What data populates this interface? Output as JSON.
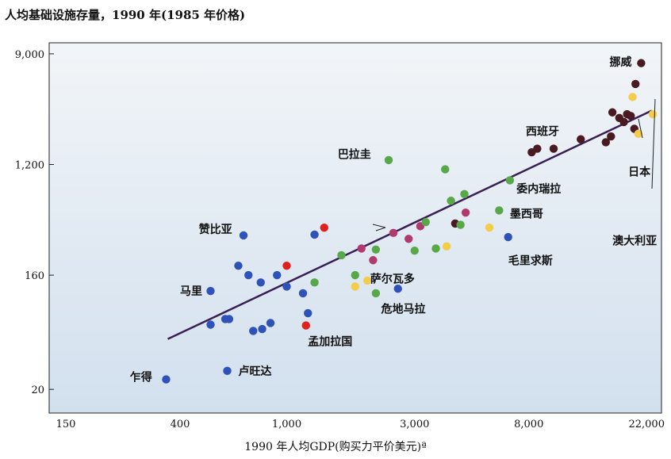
{
  "chart_data": {
    "type": "scatter",
    "title": "人均基础设施存量，1990 年(1985 年价格)",
    "xlabel": "1990 年人均GDP(购买力平价美元)ª",
    "ylabel": "",
    "xscale": "log",
    "yscale": "log",
    "xlim": [
      130,
      25000
    ],
    "ylim": [
      13,
      11000
    ],
    "x_ticks": [
      {
        "value": 150,
        "label": "150"
      },
      {
        "value": 400,
        "label": "400"
      },
      {
        "value": 1000,
        "label": "1,000"
      },
      {
        "value": 3000,
        "label": "3,000"
      },
      {
        "value": 8000,
        "label": "8,000"
      },
      {
        "value": 22000,
        "label": "22,000"
      }
    ],
    "y_ticks": [
      {
        "value": 20,
        "label": "20"
      },
      {
        "value": 160,
        "label": "160"
      },
      {
        "value": 1200,
        "label": "1,200"
      },
      {
        "value": 9000,
        "label": "9,000"
      }
    ],
    "grid": false,
    "legend": "none",
    "colors": {
      "blue": "#2f52b8",
      "red": "#e0201c",
      "green": "#58a84a",
      "magenta": "#b03a6e",
      "yellow": "#f2cc4a",
      "darkred": "#4a1a22",
      "line": "#3a1f55",
      "bg_top": "#f2f5f8",
      "bg_bottom": "#d2e0ee"
    },
    "trend_line": {
      "x": [
        360,
        23000
      ],
      "y": [
        50,
        3200
      ]
    },
    "points": [
      {
        "x": 355,
        "y": 24,
        "color": "blue"
      },
      {
        "x": 600,
        "y": 28,
        "color": "blue"
      },
      {
        "x": 520,
        "y": 120,
        "color": "blue"
      },
      {
        "x": 520,
        "y": 65,
        "color": "blue"
      },
      {
        "x": 590,
        "y": 72,
        "color": "blue"
      },
      {
        "x": 610,
        "y": 72,
        "color": "blue"
      },
      {
        "x": 660,
        "y": 190,
        "color": "blue"
      },
      {
        "x": 690,
        "y": 330,
        "color": "blue"
      },
      {
        "x": 720,
        "y": 160,
        "color": "blue"
      },
      {
        "x": 750,
        "y": 58,
        "color": "blue"
      },
      {
        "x": 800,
        "y": 140,
        "color": "blue"
      },
      {
        "x": 810,
        "y": 60,
        "color": "blue"
      },
      {
        "x": 870,
        "y": 67,
        "color": "blue"
      },
      {
        "x": 920,
        "y": 160,
        "color": "blue"
      },
      {
        "x": 1000,
        "y": 190,
        "color": "red"
      },
      {
        "x": 1000,
        "y": 130,
        "color": "blue"
      },
      {
        "x": 1150,
        "y": 115,
        "color": "blue"
      },
      {
        "x": 1200,
        "y": 80,
        "color": "blue"
      },
      {
        "x": 1180,
        "y": 64,
        "color": "red"
      },
      {
        "x": 1270,
        "y": 335,
        "color": "blue"
      },
      {
        "x": 1380,
        "y": 380,
        "color": "red"
      },
      {
        "x": 1270,
        "y": 140,
        "color": "green"
      },
      {
        "x": 1600,
        "y": 230,
        "color": "green"
      },
      {
        "x": 1800,
        "y": 160,
        "color": "green"
      },
      {
        "x": 1800,
        "y": 130,
        "color": "yellow"
      },
      {
        "x": 1900,
        "y": 260,
        "color": "magenta"
      },
      {
        "x": 2000,
        "y": 145,
        "color": "yellow"
      },
      {
        "x": 2100,
        "y": 210,
        "color": "magenta"
      },
      {
        "x": 2150,
        "y": 255,
        "color": "green"
      },
      {
        "x": 2150,
        "y": 115,
        "color": "green"
      },
      {
        "x": 2400,
        "y": 1300,
        "color": "green"
      },
      {
        "x": 2500,
        "y": 345,
        "color": "magenta"
      },
      {
        "x": 2600,
        "y": 125,
        "color": "blue"
      },
      {
        "x": 2850,
        "y": 310,
        "color": "magenta"
      },
      {
        "x": 3000,
        "y": 250,
        "color": "green"
      },
      {
        "x": 3150,
        "y": 390,
        "color": "magenta"
      },
      {
        "x": 3300,
        "y": 420,
        "color": "green"
      },
      {
        "x": 3600,
        "y": 260,
        "color": "green"
      },
      {
        "x": 3900,
        "y": 1100,
        "color": "green"
      },
      {
        "x": 3950,
        "y": 270,
        "color": "yellow"
      },
      {
        "x": 4100,
        "y": 620,
        "color": "green"
      },
      {
        "x": 4250,
        "y": 410,
        "color": "darkred"
      },
      {
        "x": 4450,
        "y": 400,
        "color": "green"
      },
      {
        "x": 4600,
        "y": 700,
        "color": "green"
      },
      {
        "x": 4650,
        "y": 500,
        "color": "magenta"
      },
      {
        "x": 5700,
        "y": 380,
        "color": "yellow"
      },
      {
        "x": 6200,
        "y": 520,
        "color": "green"
      },
      {
        "x": 6700,
        "y": 320,
        "color": "blue"
      },
      {
        "x": 6800,
        "y": 900,
        "color": "green"
      },
      {
        "x": 8200,
        "y": 1500,
        "color": "darkred"
      },
      {
        "x": 8600,
        "y": 1600,
        "color": "darkred"
      },
      {
        "x": 9900,
        "y": 1600,
        "color": "darkred"
      },
      {
        "x": 12500,
        "y": 1900,
        "color": "darkred"
      },
      {
        "x": 15500,
        "y": 1800,
        "color": "darkred"
      },
      {
        "x": 16200,
        "y": 2000,
        "color": "darkred"
      },
      {
        "x": 16400,
        "y": 3100,
        "color": "darkred"
      },
      {
        "x": 17400,
        "y": 2800,
        "color": "darkred"
      },
      {
        "x": 18100,
        "y": 2600,
        "color": "darkred"
      },
      {
        "x": 18600,
        "y": 3000,
        "color": "darkred"
      },
      {
        "x": 19200,
        "y": 2900,
        "color": "darkred"
      },
      {
        "x": 19500,
        "y": 4100,
        "color": "yellow"
      },
      {
        "x": 19800,
        "y": 2300,
        "color": "darkred"
      },
      {
        "x": 20000,
        "y": 5200,
        "color": "darkred"
      },
      {
        "x": 20500,
        "y": 2100,
        "color": "yellow"
      },
      {
        "x": 21000,
        "y": 7600,
        "color": "darkred"
      },
      {
        "x": 23200,
        "y": 3000,
        "color": "yellow"
      }
    ],
    "annotations": [
      {
        "text": "挪威",
        "x": 16000,
        "y": 7800
      },
      {
        "text": "西班牙",
        "x": 7800,
        "y": 2200
      },
      {
        "text": "巴拉圭",
        "x": 1550,
        "y": 1450
      },
      {
        "text": "日本",
        "x": 18800,
        "y": 1050
      },
      {
        "text": "委内瑞拉",
        "x": 7200,
        "y": 770
      },
      {
        "text": "澳大利亚",
        "x": 16400,
        "y": 300
      },
      {
        "text": "墨西哥",
        "x": 6800,
        "y": 490
      },
      {
        "text": "赞比亚",
        "x": 470,
        "y": 370
      },
      {
        "text": "毛里求斯",
        "x": 6700,
        "y": 210
      },
      {
        "text": "萨尔瓦多",
        "x": 2050,
        "y": 150
      },
      {
        "text": "马里",
        "x": 400,
        "y": 120
      },
      {
        "text": "危地马拉",
        "x": 2250,
        "y": 87
      },
      {
        "text": "孟加拉国",
        "x": 1200,
        "y": 48
      },
      {
        "text": "乍得",
        "x": 260,
        "y": 25
      },
      {
        "text": "卢旺达",
        "x": 660,
        "y": 28
      }
    ]
  }
}
